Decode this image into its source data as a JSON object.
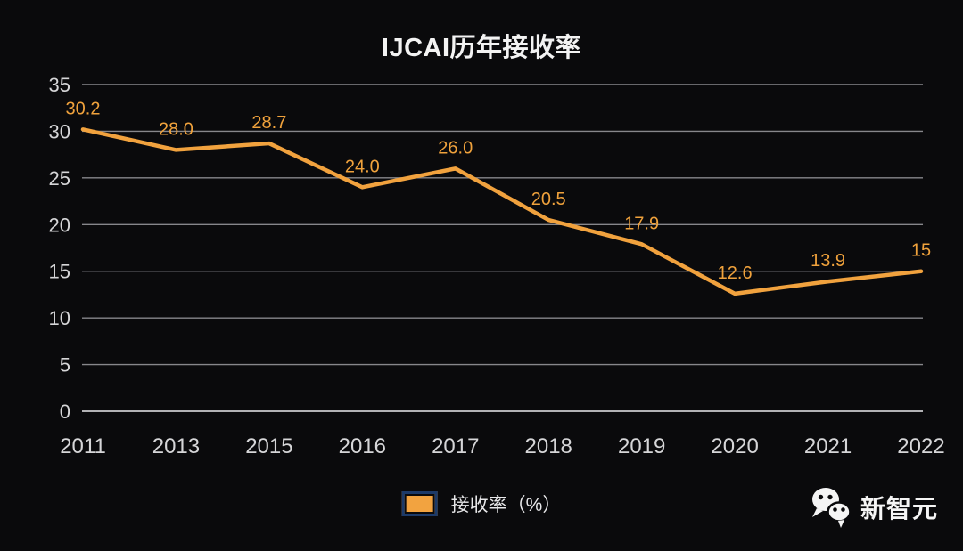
{
  "chart_data": {
    "type": "line",
    "title": "IJCAI历年接收率",
    "categories": [
      "2011",
      "2013",
      "2015",
      "2016",
      "2017",
      "2018",
      "2019",
      "2020",
      "2021",
      "2022"
    ],
    "series": [
      {
        "name": "接收率（%）",
        "values": [
          30.2,
          28.0,
          28.7,
          24.0,
          26.0,
          20.5,
          17.9,
          12.6,
          13.9,
          15
        ]
      }
    ],
    "data_labels": [
      "30.2",
      "28.0",
      "28.7",
      "24.0",
      "26.0",
      "20.5",
      "17.9",
      "12.6",
      "13.9",
      "15"
    ],
    "xlabel": "",
    "ylabel": "",
    "y_ticks": [
      0,
      5,
      10,
      15,
      20,
      25,
      30,
      35
    ],
    "ylim": [
      0,
      35
    ],
    "grid": true,
    "legend_position": "bottom"
  },
  "legend": {
    "label": "接收率（%）",
    "swatch_color": "#F2A340"
  },
  "brand": {
    "name": "新智元",
    "icon": "wechat-icon"
  },
  "colors": {
    "background": "#0A0A0C",
    "accent_line": "#F1A23E",
    "data_label": "#F0A23C",
    "gridline": "#87878B",
    "axis_baseline": "#B2B2B5",
    "tick_text": "#D6D6D8",
    "title_text": "#F3F3F3",
    "legend_border": "#1C3A69"
  }
}
